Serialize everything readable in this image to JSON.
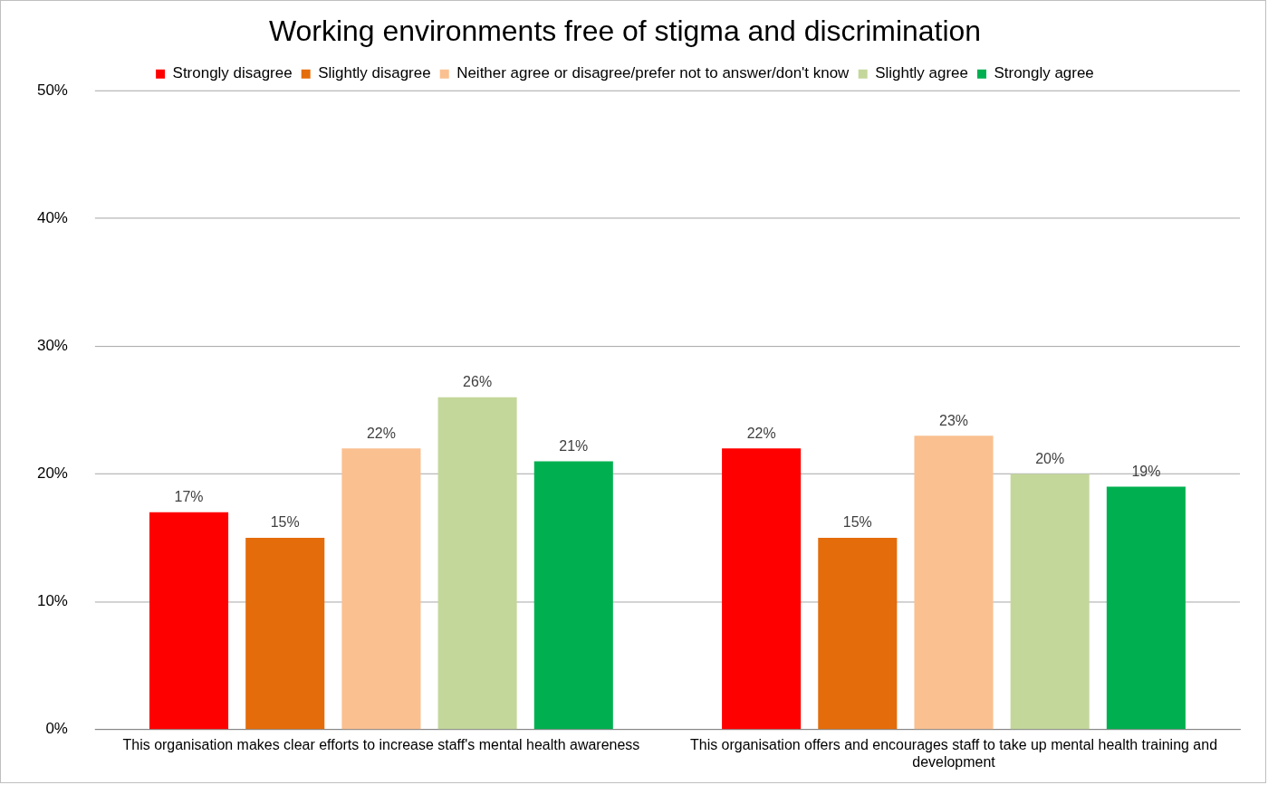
{
  "chart_data": {
    "type": "bar",
    "title": "Working environments free of stigma and discrimination",
    "categories": [
      "This organisation makes clear efforts to increase staff's mental health awareness",
      "This organisation offers and encourages staff to take up mental health training and development"
    ],
    "series": [
      {
        "name": "Strongly disagree",
        "color": "#ff0000",
        "values": [
          17,
          22
        ],
        "value_labels": [
          "17%",
          "22%"
        ]
      },
      {
        "name": "Slightly disagree",
        "color": "#e46c0a",
        "values": [
          15,
          15
        ],
        "value_labels": [
          "15%",
          "15%"
        ]
      },
      {
        "name": "Neither agree or disagree/prefer not to answer/don't know",
        "color": "#fac090",
        "values": [
          22,
          23
        ],
        "value_labels": [
          "22%",
          "23%"
        ]
      },
      {
        "name": "Slightly agree",
        "color": "#c4d79b",
        "values": [
          26,
          20
        ],
        "value_labels": [
          "26%",
          "20%"
        ]
      },
      {
        "name": "Strongly agree",
        "color": "#00b050",
        "values": [
          21,
          19
        ],
        "value_labels": [
          "21%",
          "19%"
        ]
      }
    ],
    "ylim": [
      0,
      50
    ],
    "yticks": [
      {
        "value": 0,
        "label": "0%"
      },
      {
        "value": 10,
        "label": "10%"
      },
      {
        "value": 20,
        "label": "20%"
      },
      {
        "value": 30,
        "label": "30%"
      },
      {
        "value": 40,
        "label": "40%"
      },
      {
        "value": 50,
        "label": "50%"
      }
    ],
    "grid": "y",
    "legend": "top"
  }
}
